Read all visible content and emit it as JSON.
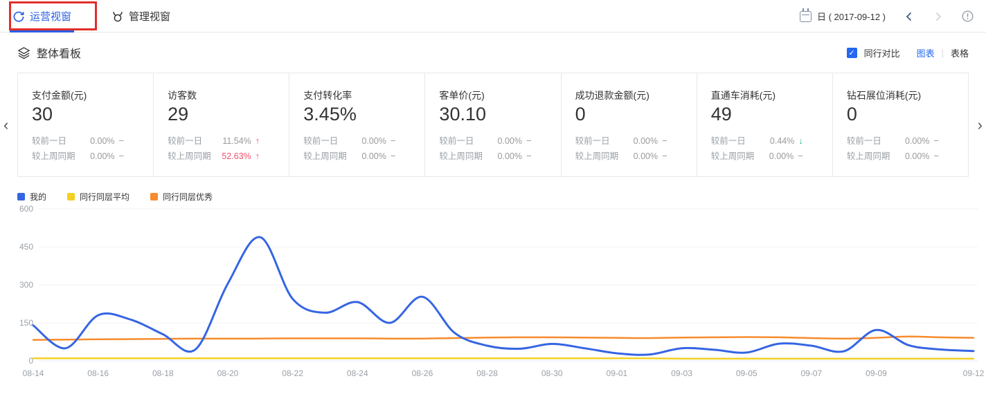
{
  "header": {
    "tabs": [
      {
        "label": "运营视窗",
        "active": true
      },
      {
        "label": "管理视窗",
        "active": false
      }
    ],
    "date_picker_label": "日 ( 2017-09-12 )"
  },
  "section": {
    "title": "整体看板",
    "peer_compare_label": "同行对比",
    "peer_compare_checked": true,
    "checkmark": "✓",
    "view_chart_label": "图表",
    "view_table_label": "表格",
    "view_divider": "|"
  },
  "cards": [
    {
      "title": "支付金额(元)",
      "value": "30",
      "rows": [
        {
          "label": "较前一日",
          "value": "0.00%",
          "arrow": "−",
          "trend": "flat",
          "emph": false
        },
        {
          "label": "较上周同期",
          "value": "0.00%",
          "arrow": "−",
          "trend": "flat",
          "emph": false
        }
      ]
    },
    {
      "title": "访客数",
      "value": "29",
      "rows": [
        {
          "label": "较前一日",
          "value": "11.54%",
          "arrow": "↑",
          "trend": "up",
          "emph": false
        },
        {
          "label": "较上周同期",
          "value": "52.63%",
          "arrow": "↑",
          "trend": "up",
          "emph": true
        }
      ]
    },
    {
      "title": "支付转化率",
      "value": "3.45%",
      "rows": [
        {
          "label": "较前一日",
          "value": "0.00%",
          "arrow": "−",
          "trend": "flat",
          "emph": false
        },
        {
          "label": "较上周同期",
          "value": "0.00%",
          "arrow": "−",
          "trend": "flat",
          "emph": false
        }
      ]
    },
    {
      "title": "客单价(元)",
      "value": "30.10",
      "rows": [
        {
          "label": "较前一日",
          "value": "0.00%",
          "arrow": "−",
          "trend": "flat",
          "emph": false
        },
        {
          "label": "较上周同期",
          "value": "0.00%",
          "arrow": "−",
          "trend": "flat",
          "emph": false
        }
      ]
    },
    {
      "title": "成功退款金额(元)",
      "value": "0",
      "rows": [
        {
          "label": "较前一日",
          "value": "0.00%",
          "arrow": "−",
          "trend": "flat",
          "emph": false
        },
        {
          "label": "较上周同期",
          "value": "0.00%",
          "arrow": "−",
          "trend": "flat",
          "emph": false
        }
      ]
    },
    {
      "title": "直通车消耗(元)",
      "value": "49",
      "rows": [
        {
          "label": "较前一日",
          "value": "0.44%",
          "arrow": "↓",
          "trend": "down",
          "emph": false
        },
        {
          "label": "较上周同期",
          "value": "0.00%",
          "arrow": "−",
          "trend": "flat",
          "emph": false
        }
      ]
    },
    {
      "title": "钻石展位消耗(元)",
      "value": "0",
      "rows": [
        {
          "label": "较前一日",
          "value": "0.00%",
          "arrow": "−",
          "trend": "flat",
          "emph": false
        },
        {
          "label": "较上周同期",
          "value": "0.00%",
          "arrow": "−",
          "trend": "flat",
          "emph": false
        }
      ]
    }
  ],
  "legend": [
    {
      "label": "我的",
      "color": "#3565e3"
    },
    {
      "label": "同行同层平均",
      "color": "#f2d024"
    },
    {
      "label": "同行同层优秀",
      "color": "#f78b2d"
    }
  ],
  "chart_data": {
    "type": "line",
    "title": "",
    "xlabel": "",
    "ylabel": "",
    "ylim": [
      0,
      600
    ],
    "yticks": [
      0,
      150,
      300,
      450,
      600
    ],
    "grid": true,
    "legend_position": "top-left",
    "x": [
      "08-14",
      "08-15",
      "08-16",
      "08-17",
      "08-18",
      "08-19",
      "08-20",
      "08-21",
      "08-22",
      "08-23",
      "08-24",
      "08-25",
      "08-26",
      "08-27",
      "08-28",
      "08-29",
      "08-30",
      "08-31",
      "09-01",
      "09-02",
      "09-03",
      "09-04",
      "09-05",
      "09-06",
      "09-07",
      "09-08",
      "09-09",
      "09-10",
      "09-11",
      "09-12"
    ],
    "xtick_labels": [
      "08-14",
      "08-16",
      "08-18",
      "08-20",
      "08-22",
      "08-24",
      "08-26",
      "08-28",
      "08-30",
      "09-01",
      "09-03",
      "09-05",
      "09-07",
      "09-09",
      "09-12"
    ],
    "series": [
      {
        "name": "我的",
        "color": "#3565e3",
        "values": [
          140,
          50,
          180,
          163,
          105,
          45,
          305,
          488,
          245,
          190,
          232,
          150,
          253,
          110,
          60,
          48,
          67,
          50,
          30,
          25,
          50,
          44,
          33,
          68,
          60,
          38,
          122,
          62,
          45,
          39
        ]
      },
      {
        "name": "同行同层平均",
        "color": "#f2d024",
        "values": [
          10,
          10,
          10,
          10,
          10,
          10,
          10,
          10,
          10,
          10,
          10,
          10,
          10,
          10,
          10,
          10,
          10,
          10,
          10,
          10,
          9,
          9,
          9,
          9,
          9,
          9,
          9,
          9,
          9,
          9
        ]
      },
      {
        "name": "同行同层优秀",
        "color": "#f78b2d",
        "values": [
          83,
          84,
          85,
          86,
          87,
          88,
          88,
          88,
          89,
          89,
          89,
          88,
          88,
          90,
          92,
          93,
          93,
          92,
          91,
          90,
          92,
          93,
          94,
          93,
          90,
          88,
          91,
          96,
          93,
          91
        ]
      }
    ]
  },
  "annotation_color": "#e12d2b"
}
